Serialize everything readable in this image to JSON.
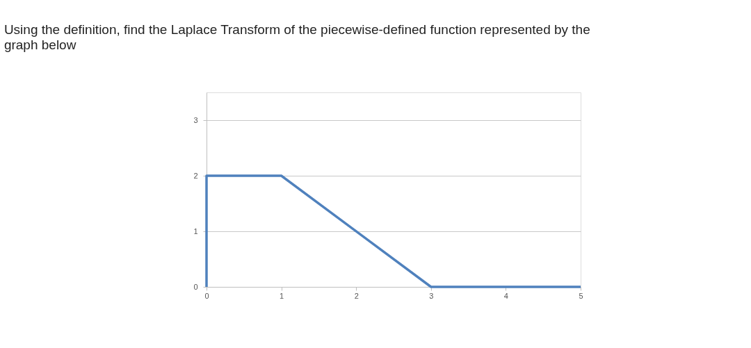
{
  "chart_data": {
    "type": "line",
    "title": "Using the definition, find the Laplace Transform of the piecewise-defined function represented by the graph below",
    "x": [
      0,
      0,
      1,
      3,
      5
    ],
    "series": [
      {
        "color": "#4f81bd",
        "values": [
          0,
          2,
          2,
          0,
          0
        ]
      }
    ],
    "xlim": [
      0,
      5
    ],
    "xticks": [
      0,
      1,
      2,
      3,
      4,
      5
    ],
    "ylim": [
      0,
      3.5
    ],
    "yticks": [
      0,
      1,
      2,
      3
    ],
    "grid": "y",
    "marker": "none",
    "line_style": "solid"
  }
}
